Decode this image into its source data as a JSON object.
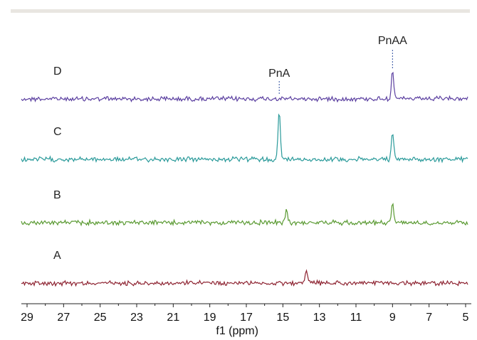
{
  "chart_data": {
    "type": "line",
    "xlabel": "f1 (ppm)",
    "x_ticks": [
      "29",
      "27",
      "25",
      "23",
      "21",
      "19",
      "17",
      "15",
      "13",
      "11",
      "9",
      "7",
      "5"
    ],
    "xlim": [
      29,
      5
    ],
    "x_reversed": true,
    "grid": false,
    "series": [
      {
        "name": "D",
        "color": "#5b3fa0",
        "peaks": [
          {
            "ppm": 9.0,
            "height": 1.0
          }
        ]
      },
      {
        "name": "C",
        "color": "#2a9a9a",
        "peaks": [
          {
            "ppm": 15.2,
            "height": 1.0
          },
          {
            "ppm": 9.0,
            "height": 0.55
          }
        ]
      },
      {
        "name": "B",
        "color": "#5a9a32",
        "peaks": [
          {
            "ppm": 14.8,
            "height": 0.45
          },
          {
            "ppm": 9.0,
            "height": 0.7
          }
        ]
      },
      {
        "name": "A",
        "color": "#8e2432",
        "peaks": [
          {
            "ppm": 13.7,
            "height": 0.55
          }
        ]
      }
    ],
    "annotations": [
      {
        "text": "PnA",
        "ppm": 15.2
      },
      {
        "text": "PnAA",
        "ppm": 9.0
      }
    ]
  }
}
